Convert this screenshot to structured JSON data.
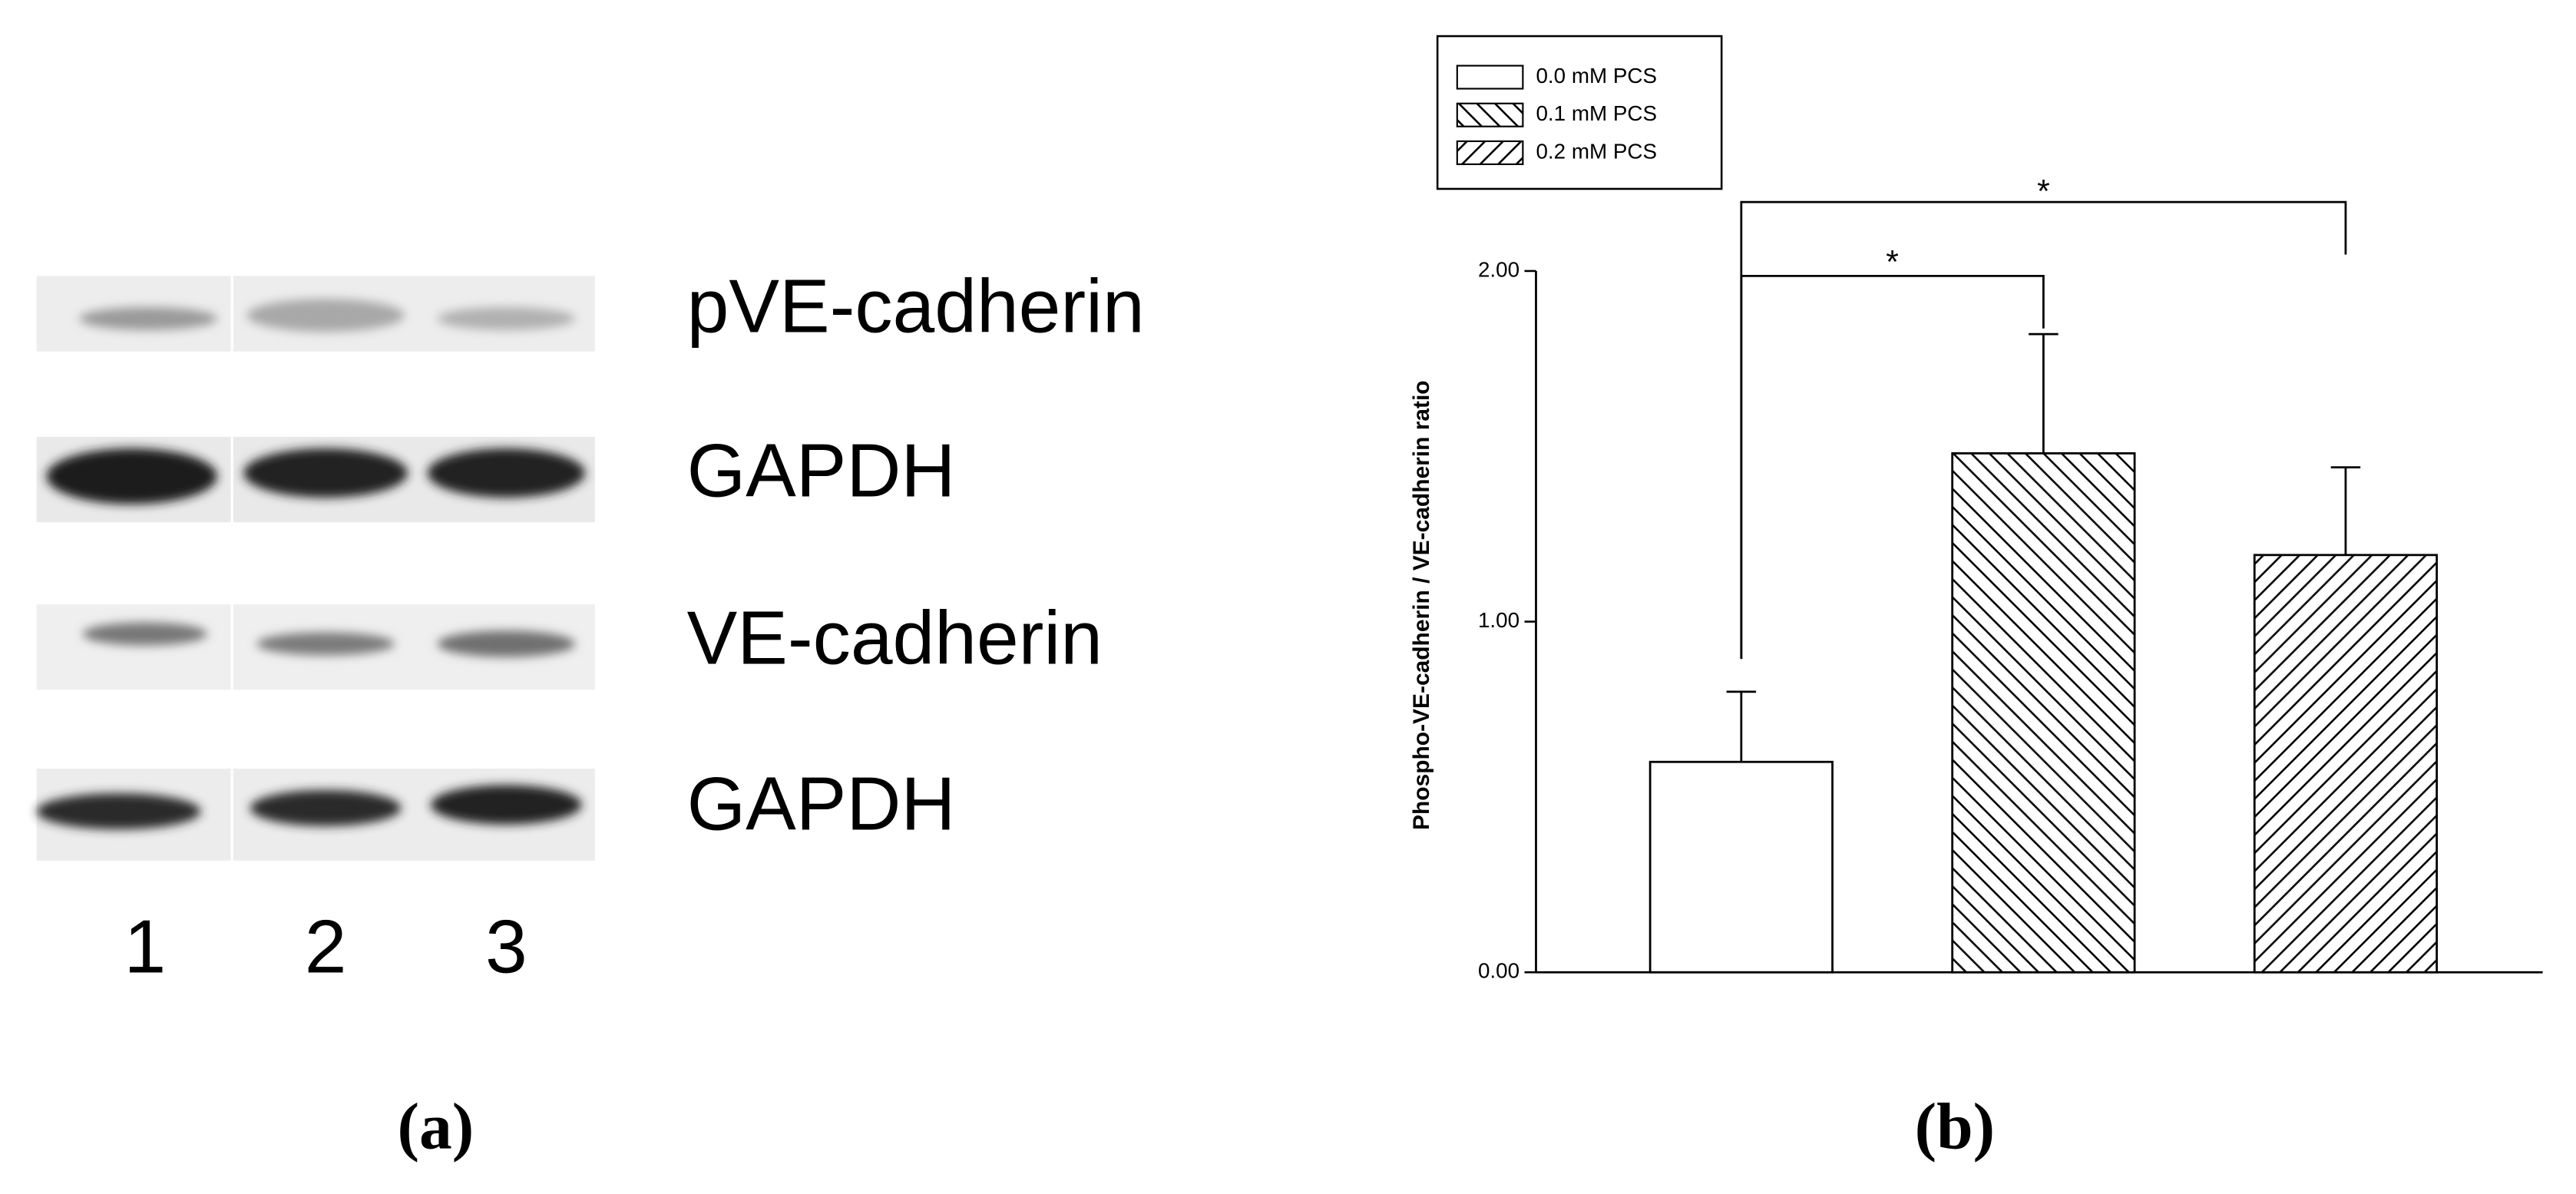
{
  "blot": {
    "labels": [
      "pVE-cadherin",
      "GAPDH",
      "VE-cadherin",
      "GAPDH"
    ],
    "lanes": [
      "1",
      "2",
      "3"
    ]
  },
  "panels": [
    "(a)",
    "(b)"
  ],
  "chart_data": {
    "type": "bar",
    "ylabel": "Phospho-VE-cadherin / VE-cadherin ratio",
    "categories": [
      null
    ],
    "series": [
      {
        "name": "0.0 mM PCS",
        "color": "#000000",
        "hatch": "none",
        "values": [
          0.6
        ],
        "errors": [
          0.2
        ]
      },
      {
        "name": "0.1 mM PCS",
        "color": "#000000",
        "hatch": "backslash",
        "values": [
          1.48
        ],
        "errors": [
          0.34
        ]
      },
      {
        "name": "0.2 mM PCS",
        "color": "#000000",
        "hatch": "slash",
        "values": [
          1.19
        ],
        "errors": [
          0.25
        ]
      }
    ],
    "ylim": [
      0,
      2
    ],
    "yticks": [
      {
        "value": 0,
        "label": "0.00"
      },
      {
        "value": 1,
        "label": "1.00"
      },
      {
        "value": 2,
        "label": "2.00"
      }
    ],
    "legend": "top-left",
    "annotations": [
      "*",
      "*"
    ]
  }
}
